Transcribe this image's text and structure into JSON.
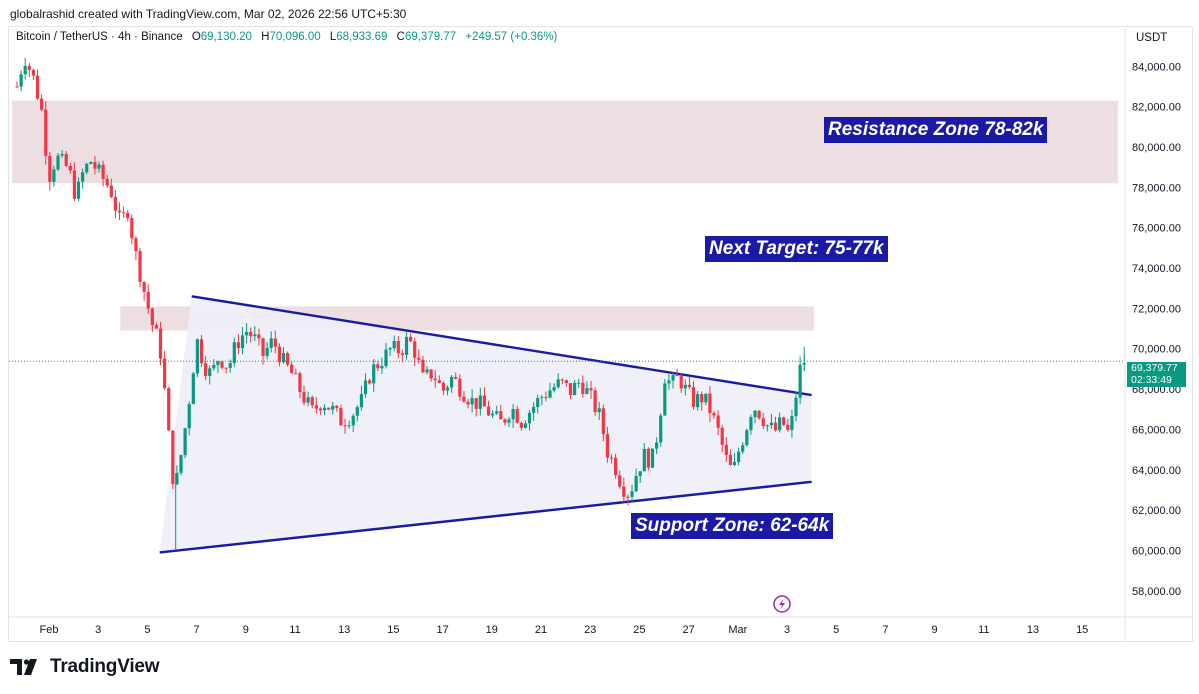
{
  "header": {
    "credit": "globalrashid created with TradingView.com, Mar 02, 2026 22:56 UTC+5:30"
  },
  "legend": {
    "symbol": "Bitcoin / TetherUS · 4h · Binance",
    "o_label": "O",
    "o_value": "69,130.20",
    "h_label": "H",
    "h_value": "70,096.00",
    "l_label": "L",
    "l_value": "68,933.69",
    "c_label": "C",
    "c_value": "69,379.77",
    "change": "+249.57 (+0.36%)"
  },
  "price_tag": {
    "price": "69,379.77",
    "countdown": "02:33:49"
  },
  "currency": "USDT",
  "annotations": {
    "resistance": "Resistance Zone 78-82k",
    "target": "Next Target: 75-77k",
    "support": "Support Zone: 62-64k"
  },
  "footer": {
    "brand": "TradingView"
  },
  "colors": {
    "up": "#089981",
    "down": "#f23645",
    "annotation_bg": "#1a1aa6",
    "zone": "#ead9dc",
    "triangle_fill": "#eeeef8"
  },
  "chart_data": {
    "type": "candlestick",
    "symbol": "Bitcoin / TetherUS",
    "interval": "4h",
    "ylim": [
      56800,
      85800
    ],
    "y_ticks": [
      "84,000.00",
      "82,000.00",
      "80,000.00",
      "78,000.00",
      "76,000.00",
      "74,000.00",
      "72,000.00",
      "70,000.00",
      "68,000.00",
      "66,000.00",
      "64,000.00",
      "62,000.00",
      "60,000.00",
      "58,000.00"
    ],
    "y_tick_values": [
      84000,
      82000,
      80000,
      78000,
      76000,
      74000,
      72000,
      70000,
      68000,
      66000,
      64000,
      62000,
      60000,
      58000
    ],
    "x_ticks": [
      "Feb",
      "3",
      "5",
      "7",
      "9",
      "11",
      "13",
      "15",
      "17",
      "19",
      "21",
      "23",
      "25",
      "27",
      "Mar",
      "3",
      "5",
      "7",
      "9",
      "11",
      "13",
      "15"
    ],
    "x_tick_days": [
      0,
      2,
      4,
      6,
      8,
      10,
      12,
      14,
      16,
      18,
      20,
      22,
      24,
      26,
      28,
      30,
      32,
      34,
      36,
      38,
      40,
      42
    ],
    "last_price": 69379.77,
    "zones": [
      {
        "from_day": -1.5,
        "to_day": 45.5,
        "low": 78200,
        "high": 82300
      },
      {
        "from_day": 2.9,
        "to_day": 31.1,
        "low": 70900,
        "high": 72100
      }
    ],
    "trendlines": [
      {
        "name": "upper",
        "from": [
          5.8,
          72600
        ],
        "to": [
          31.0,
          67700
        ]
      },
      {
        "name": "lower",
        "from": [
          4.5,
          59900
        ],
        "to": [
          31.0,
          63400
        ]
      }
    ],
    "candles_anchors": [
      [
        -1.3,
        83000
      ],
      [
        -1.0,
        84500
      ],
      [
        -0.6,
        83300
      ],
      [
        -0.3,
        81800
      ],
      [
        0.0,
        78500
      ],
      [
        0.3,
        79500
      ],
      [
        0.8,
        78900
      ],
      [
        1.1,
        77500
      ],
      [
        1.4,
        78800
      ],
      [
        1.7,
        79300
      ],
      [
        2.1,
        78600
      ],
      [
        2.5,
        77900
      ],
      [
        2.9,
        76200
      ],
      [
        3.2,
        76900
      ],
      [
        3.5,
        74800
      ],
      [
        3.9,
        72700
      ],
      [
        4.2,
        71200
      ],
      [
        4.5,
        70200
      ],
      [
        4.7,
        67900
      ],
      [
        4.9,
        65200
      ],
      [
        5.1,
        62900
      ],
      [
        5.3,
        64200
      ],
      [
        5.6,
        66600
      ],
      [
        5.8,
        68400
      ],
      [
        6.0,
        70500
      ],
      [
        6.3,
        69200
      ],
      [
        6.6,
        68700
      ],
      [
        6.9,
        69600
      ],
      [
        7.3,
        69100
      ],
      [
        7.6,
        70200
      ],
      [
        8.0,
        70900
      ],
      [
        8.3,
        70600
      ],
      [
        8.7,
        69700
      ],
      [
        9.1,
        70400
      ],
      [
        9.5,
        69400
      ],
      [
        9.9,
        68700
      ],
      [
        10.3,
        67700
      ],
      [
        10.7,
        66900
      ],
      [
        11.1,
        67400
      ],
      [
        11.5,
        67000
      ],
      [
        11.9,
        66400
      ],
      [
        12.3,
        66700
      ],
      [
        12.7,
        67400
      ],
      [
        13.1,
        68900
      ],
      [
        13.5,
        69400
      ],
      [
        13.9,
        70000
      ],
      [
        14.3,
        69900
      ],
      [
        14.6,
        70500
      ],
      [
        14.9,
        69800
      ],
      [
        15.2,
        68500
      ],
      [
        15.6,
        68800
      ],
      [
        16.0,
        67900
      ],
      [
        16.4,
        68600
      ],
      [
        16.8,
        67900
      ],
      [
        17.2,
        67400
      ],
      [
        17.6,
        67200
      ],
      [
        18.0,
        66700
      ],
      [
        18.4,
        66300
      ],
      [
        18.8,
        67100
      ],
      [
        19.2,
        66400
      ],
      [
        19.6,
        67000
      ],
      [
        20.0,
        67600
      ],
      [
        20.4,
        68000
      ],
      [
        20.8,
        68300
      ],
      [
        21.2,
        67900
      ],
      [
        21.6,
        68400
      ],
      [
        22.0,
        67600
      ],
      [
        22.4,
        66600
      ],
      [
        22.7,
        64900
      ],
      [
        23.0,
        64200
      ],
      [
        23.3,
        63200
      ],
      [
        23.6,
        62800
      ],
      [
        23.9,
        63900
      ],
      [
        24.2,
        64700
      ],
      [
        24.5,
        64400
      ],
      [
        24.8,
        66200
      ],
      [
        25.0,
        68700
      ],
      [
        25.3,
        68200
      ],
      [
        25.6,
        68600
      ],
      [
        25.9,
        67900
      ],
      [
        26.2,
        67400
      ],
      [
        26.6,
        67600
      ],
      [
        26.9,
        66900
      ],
      [
        27.2,
        65900
      ],
      [
        27.5,
        64600
      ],
      [
        27.8,
        63800
      ],
      [
        28.0,
        64800
      ],
      [
        28.3,
        65900
      ],
      [
        28.6,
        67200
      ],
      [
        28.9,
        66800
      ],
      [
        29.2,
        66200
      ],
      [
        29.5,
        65900
      ],
      [
        29.8,
        66400
      ],
      [
        30.1,
        65700
      ],
      [
        30.3,
        67100
      ],
      [
        30.5,
        68900
      ],
      [
        30.7,
        69380
      ]
    ]
  }
}
